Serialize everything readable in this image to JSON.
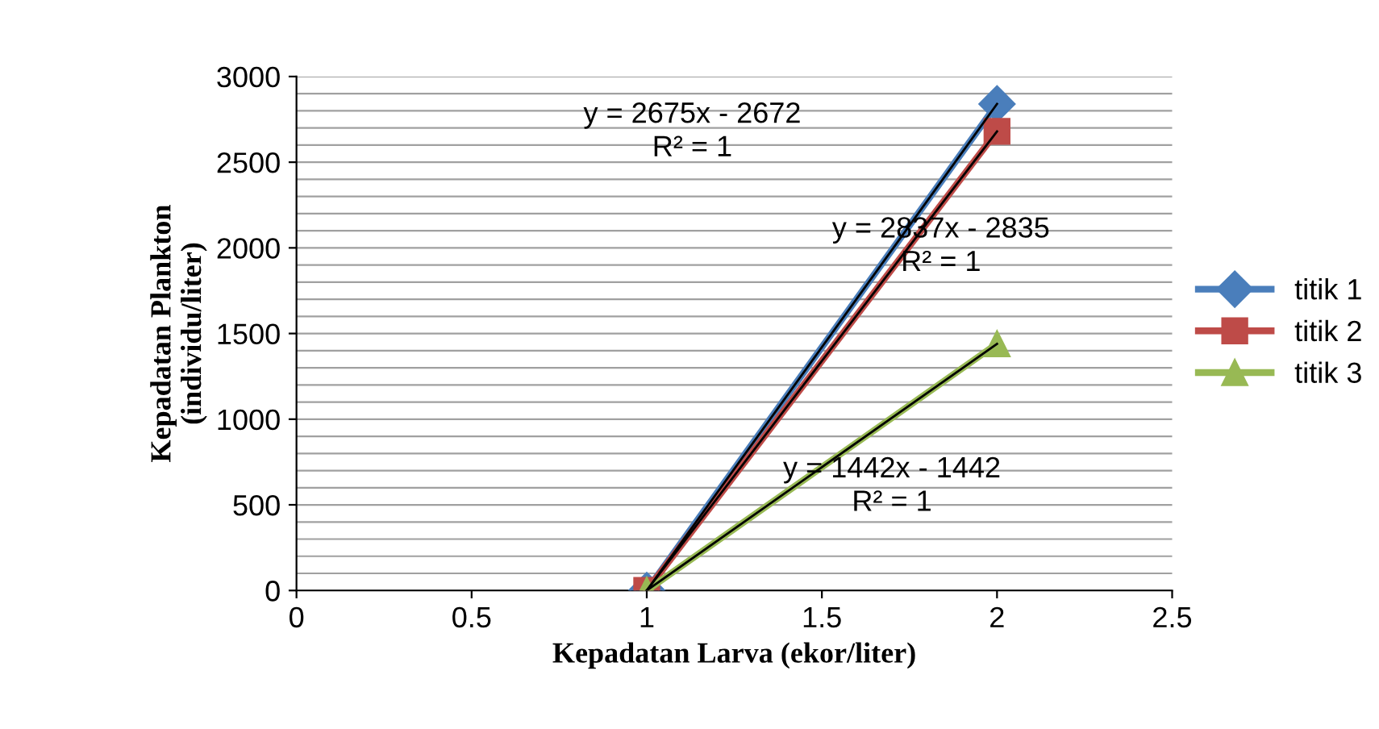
{
  "chart_data": {
    "type": "line",
    "xlabel": "Kepadatan Larva (ekor/liter)",
    "ylabel": "Kepadatan Plankton\n(individu/liter)",
    "x": [
      1,
      2
    ],
    "series": [
      {
        "name": "titik 1",
        "color": "#4a7ebb",
        "values": [
          0,
          2840
        ],
        "marker": "diamond"
      },
      {
        "name": "titik 2",
        "color": "#be4b48",
        "values": [
          0,
          2680
        ],
        "marker": "square"
      },
      {
        "name": "titik 3",
        "color": "#98b954",
        "values": [
          0,
          1440
        ],
        "marker": "triangle"
      },
      {
        "type": "line",
        "color": "#000000",
        "values": [
          0,
          2680
        ],
        "marker": "none"
      },
      {
        "type": "line",
        "color": "#000000",
        "values": [
          0,
          2840
        ],
        "marker": "none"
      },
      {
        "type": "line",
        "color": "#000000",
        "values": [
          0,
          1440
        ],
        "marker": "none"
      }
    ],
    "annotations": [
      "y = 2675x - 2672\nR² = 1",
      "y = 2837x - 2835\nR² = 1",
      "y = 1442x - 1442\nR² = 1"
    ],
    "xlim": [
      0,
      2.5
    ],
    "xticks": [
      0,
      0.5,
      1,
      1.5,
      2,
      2.5
    ],
    "ylim": [
      0,
      3000
    ],
    "yticks": [
      0,
      500,
      1000,
      1500,
      2000,
      2500,
      3000
    ],
    "grid": "y",
    "legend": "right"
  }
}
